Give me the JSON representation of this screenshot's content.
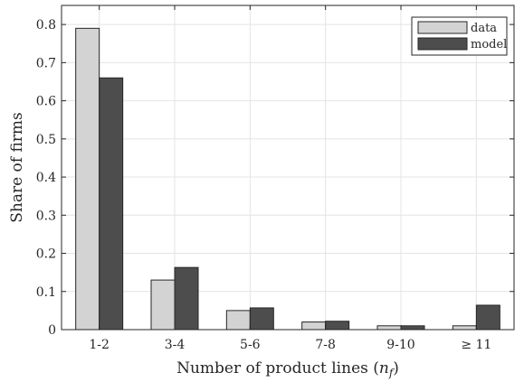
{
  "chart_data": {
    "type": "bar",
    "categories": [
      "1-2",
      "3-4",
      "5-6",
      "7-8",
      "9-10",
      "≥ 11"
    ],
    "series": [
      {
        "name": "data",
        "values": [
          0.79,
          0.13,
          0.05,
          0.02,
          0.01,
          0.01
        ]
      },
      {
        "name": "model",
        "values": [
          0.66,
          0.163,
          0.057,
          0.022,
          0.01,
          0.064
        ]
      }
    ],
    "colors": {
      "data": "#d3d3d3",
      "model": "#4d4d4d",
      "grid": "#e4e4e4",
      "axis": "#262626"
    },
    "xlabel": "Number of product lines (n_f)",
    "ylabel": "Share of firms",
    "ylim": [
      0,
      0.85
    ],
    "yticks": [
      0,
      0.1,
      0.2,
      0.3,
      0.4,
      0.5,
      0.6,
      0.7,
      0.8
    ],
    "ytick_labels": [
      "0",
      "0.1",
      "0.2",
      "0.3",
      "0.4",
      "0.5",
      "0.6",
      "0.7",
      "0.8"
    ],
    "grid": true,
    "legend_position": "top-right"
  }
}
